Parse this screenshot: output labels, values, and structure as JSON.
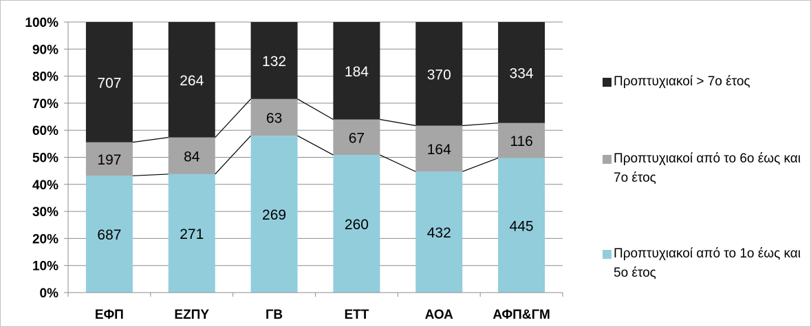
{
  "chart_data": {
    "type": "bar",
    "stacked": true,
    "normalized": true,
    "categories": [
      "ΕΦΠ",
      "ΕΖΠΥ",
      "ΓΒ",
      "ΕΤΤ",
      "ΑΟΑ",
      "ΑΦΠ&ΓΜ"
    ],
    "series": [
      {
        "name": "Προπτυχιακοί από το 1ο έως και 5ο έτος",
        "color": "#92cddc",
        "values": [
          687,
          271,
          269,
          260,
          432,
          445
        ]
      },
      {
        "name": "Προπτυχιακοί από το 6ο έως και 7ο έτος",
        "color": "#a6a6a6",
        "values": [
          197,
          84,
          63,
          67,
          164,
          116
        ]
      },
      {
        "name": "Προπτυχιακοί > 7ο έτος",
        "color": "#262626",
        "values": [
          707,
          264,
          132,
          184,
          370,
          334
        ]
      }
    ],
    "y_ticks": [
      "0%",
      "10%",
      "20%",
      "30%",
      "40%",
      "50%",
      "60%",
      "70%",
      "80%",
      "90%",
      "100%"
    ],
    "ylim": [
      0,
      100
    ],
    "grid": true,
    "series_lines": true,
    "legend_position": "right"
  }
}
